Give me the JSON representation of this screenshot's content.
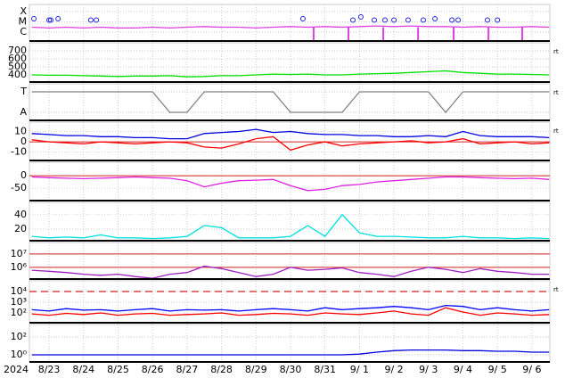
{
  "chart_data": {
    "type": "line",
    "year": "2024",
    "x": [
      -0.5,
      0,
      0.5,
      1,
      1.5,
      2,
      2.5,
      3,
      3.5,
      4,
      4.5,
      5,
      5.5,
      6,
      6.5,
      7,
      7.5,
      8,
      8.5,
      9,
      9.5,
      10,
      10.5,
      11,
      11.5,
      12,
      12.5,
      13,
      13.5,
      14,
      14.5
    ],
    "xlim": [
      -0.57,
      14.52
    ],
    "xticks": [
      {
        "value": 0,
        "label": "8/23"
      },
      {
        "value": 1,
        "label": "8/24"
      },
      {
        "value": 2,
        "label": "8/25"
      },
      {
        "value": 3,
        "label": "8/26"
      },
      {
        "value": 4,
        "label": "8/27"
      },
      {
        "value": 5,
        "label": "8/28"
      },
      {
        "value": 6,
        "label": "8/29"
      },
      {
        "value": 7,
        "label": "8/30"
      },
      {
        "value": 8,
        "label": "8/31"
      },
      {
        "value": 9,
        "label": "9/ 1"
      },
      {
        "value": 10,
        "label": "9/ 2"
      },
      {
        "value": 11,
        "label": "9/ 3"
      },
      {
        "value": 12,
        "label": "9/ 4"
      },
      {
        "value": 13,
        "label": "9/ 5"
      },
      {
        "value": 14,
        "label": "9/ 6"
      }
    ],
    "grid": true,
    "panels": [
      {
        "log": true,
        "ylim": [
          1.35e-07,
          0.0005
        ],
        "yticks": [
          {
            "value": 0.0001,
            "label": "X"
          },
          {
            "value": 1e-05,
            "label": "M"
          },
          {
            "value": 1e-06,
            "label": "C"
          }
        ],
        "series": [
          {
            "color": "#e040e0",
            "values": [
              3e-06,
              2.5e-06,
              3e-06,
              2.5e-06,
              3e-06,
              2.5e-06,
              2.5e-06,
              3e-06,
              2.5e-06,
              3e-06,
              3.5e-06,
              3e-06,
              3e-06,
              2.5e-06,
              3e-06,
              3.5e-06,
              3e-06,
              3.5e-06,
              3e-06,
              3.5e-06,
              4e-06,
              3.5e-06,
              4e-06,
              3.5e-06,
              3.5e-06,
              3e-06,
              3.5e-06,
              3e-06,
              3e-06,
              3.5e-06,
              3e-06
            ]
          }
        ],
        "flares": {
          "color": "#2020e0",
          "x": [
            -0.44,
            0,
            0.05,
            0.26,
            1.21,
            1.37,
            7.36,
            8.81,
            9.04,
            9.43,
            9.74,
            10,
            10.41,
            10.85,
            11.19,
            11.68,
            11.86,
            12.71,
            13
          ],
          "values": [
            2e-05,
            1.5e-05,
            1.5e-05,
            2e-05,
            1.5e-05,
            1.5e-05,
            2e-05,
            1.5e-05,
            3e-05,
            1.5e-05,
            1.5e-05,
            1.5e-05,
            1.5e-05,
            1.5e-05,
            2e-05,
            1.5e-05,
            1.5e-05,
            1.5e-05,
            1.5e-05
          ]
        },
        "events": {
          "color": "#e040e0",
          "x": [
            7.67,
            8.68,
            9.69,
            10.7,
            11.73,
            12.74,
            13.72
          ]
        }
      },
      {
        "log": false,
        "ylim": [
          311,
          800
        ],
        "yticks": [
          700,
          600,
          500,
          400
        ],
        "right_label": "rt",
        "series": [
          {
            "color": "#00e000",
            "values": [
              400,
              395,
              395,
              390,
              385,
              380,
              385,
              385,
              390,
              375,
              380,
              390,
              390,
              400,
              410,
              405,
              410,
              400,
              400,
              410,
              415,
              420,
              430,
              440,
              450,
              430,
              420,
              410,
              410,
              405,
              400
            ]
          }
        ]
      },
      {
        "log": false,
        "ylim": [
          -0.39,
          1.39
        ],
        "yticks": [
          {
            "value": 1,
            "label": "T"
          },
          {
            "value": 0,
            "label": "A"
          }
        ],
        "right_label": "rt",
        "series": [
          {
            "color": "#808080",
            "values": [
              1,
              1,
              1,
              1,
              1,
              1,
              1,
              1,
              0,
              0,
              1,
              1,
              1,
              1,
              1,
              0,
              0,
              0,
              0,
              1,
              1,
              1,
              1,
              1,
              0,
              1,
              1,
              1,
              1,
              1,
              1
            ]
          }
        ]
      },
      {
        "log": false,
        "ylim": [
          -18,
          19
        ],
        "yticks": [
          10,
          0,
          -10
        ],
        "ref_lines": [
          0
        ],
        "right_label": "rt",
        "series": [
          {
            "color": "#0000e0",
            "values": [
              8,
              7,
              6,
              6,
              5,
              5,
              4,
              4,
              3,
              3,
              8,
              9,
              10,
              12,
              9,
              10,
              8,
              7,
              7,
              6,
              6,
              5,
              5,
              6,
              5,
              10,
              6,
              5,
              5,
              5,
              4
            ]
          },
          {
            "color": "#ff0000",
            "values": [
              2,
              0,
              -1,
              -2,
              0,
              -1,
              -2,
              -1,
              0,
              -1,
              -5,
              -6,
              -2,
              3,
              5,
              -8,
              -3,
              0,
              -4,
              -2,
              -1,
              0,
              1,
              -1,
              0,
              3,
              -2,
              -1,
              0,
              -2,
              -1
            ]
          }
        ]
      },
      {
        "log": false,
        "ylim": [
          -100,
          54
        ],
        "yticks": [
          0,
          -50
        ],
        "ref_lines": [
          0
        ],
        "series": [
          {
            "color": "#e020e0",
            "values": [
              -5,
              -8,
              -10,
              -12,
              -10,
              -8,
              -5,
              -8,
              -10,
              -20,
              -45,
              -30,
              -20,
              -18,
              -15,
              -40,
              -60,
              -55,
              -40,
              -35,
              -25,
              -20,
              -15,
              -10,
              -5,
              -5,
              -8,
              -10,
              -12,
              -10,
              -15
            ]
          }
        ]
      },
      {
        "log": false,
        "ylim": [
          4,
          57
        ],
        "yticks": [
          40,
          20
        ],
        "series": [
          {
            "color": "#00e0e0",
            "values": [
              10,
              8,
              9,
              8,
              12,
              8,
              8,
              7,
              8,
              10,
              25,
              22,
              8,
              8,
              8,
              10,
              25,
              10,
              40,
              15,
              10,
              10,
              9,
              8,
              8,
              10,
              8,
              8,
              7,
              8,
              7
            ]
          }
        ]
      },
      {
        "log": true,
        "ylim": [
          130000,
          74000000
        ],
        "yticks": [
          {
            "value": 10000000,
            "label": "10⁷"
          },
          {
            "value": 1000000,
            "label": "10⁶"
          }
        ],
        "ref_lines": [
          10000000,
          1000000
        ],
        "series": [
          {
            "color": "#a020c0",
            "values": [
              600000,
              500000,
              400000,
              300000,
              250000,
              300000,
              200000,
              150000,
              300000,
              400000,
              1200000,
              800000,
              400000,
              200000,
              300000,
              1000000,
              600000,
              700000,
              900000,
              400000,
              300000,
              200000,
              500000,
              1000000,
              700000,
              400000,
              800000,
              500000,
              400000,
              300000,
              300000
            ]
          }
        ]
      },
      {
        "log": true,
        "ylim": [
          12,
          100000
        ],
        "yticks": [
          {
            "value": 10000,
            "label": "10⁴"
          },
          {
            "value": 1000,
            "label": "10³"
          },
          {
            "value": 100,
            "label": "10²"
          }
        ],
        "dashed_ref_lines": [
          10000
        ],
        "right_label": "rt",
        "series": [
          {
            "color": "#0000ff",
            "values": [
              200,
              150,
              250,
              180,
              200,
              150,
              200,
              250,
              150,
              200,
              180,
              200,
              150,
              200,
              250,
              200,
              150,
              300,
              200,
              250,
              300,
              400,
              300,
              200,
              500,
              400,
              200,
              300,
              200,
              150,
              200
            ]
          },
          {
            "color": "#ff0000",
            "values": [
              80,
              60,
              90,
              70,
              100,
              60,
              80,
              90,
              60,
              70,
              80,
              100,
              60,
              70,
              90,
              80,
              60,
              100,
              80,
              70,
              100,
              150,
              80,
              60,
              300,
              120,
              60,
              100,
              80,
              60,
              70
            ]
          }
        ]
      },
      {
        "log": true,
        "ylim": [
          0.16,
          2500
        ],
        "yticks": [
          {
            "value": 100,
            "label": "10²"
          },
          {
            "value": 1,
            "label": "10⁰"
          }
        ],
        "series": [
          {
            "color": "#0000e0",
            "values": [
              1,
              1,
              1,
              1,
              1,
              1,
              1,
              1,
              1,
              1,
              1,
              1,
              1,
              1,
              1,
              1,
              1,
              1,
              1,
              1.2,
              2,
              3,
              3.5,
              3.5,
              3.5,
              3,
              3,
              2.5,
              2.5,
              2,
              2
            ]
          }
        ]
      }
    ]
  }
}
